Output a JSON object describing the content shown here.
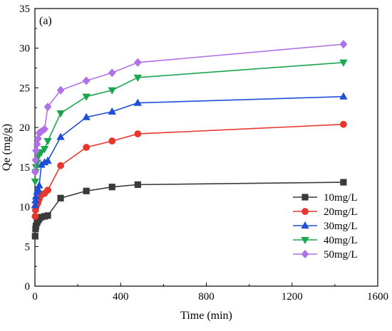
{
  "chart_data": {
    "type": "line",
    "panel_label": "(a)",
    "xlabel": "Time (min)",
    "ylabel": "Qe (mg/g)",
    "xlim": [
      0,
      1600
    ],
    "ylim": [
      0,
      35
    ],
    "xticks": [
      0,
      400,
      800,
      1200,
      1600
    ],
    "yticks": [
      0,
      5,
      10,
      15,
      20,
      25,
      30,
      35
    ],
    "grid": false,
    "legend_position": "bottom-right",
    "series": [
      {
        "name": "10mg/L",
        "color": "#3a3a3a",
        "marker": "square",
        "x": [
          1,
          3,
          5,
          10,
          15,
          20,
          30,
          45,
          60,
          120,
          240,
          360,
          480,
          1440
        ],
        "y": [
          6.3,
          7.2,
          7.6,
          8.0,
          8.3,
          8.5,
          8.7,
          8.8,
          8.9,
          11.1,
          12.0,
          12.5,
          12.8,
          13.1
        ]
      },
      {
        "name": "20mg/L",
        "color": "#e8362e",
        "marker": "circle",
        "x": [
          1,
          3,
          5,
          10,
          15,
          20,
          30,
          45,
          60,
          120,
          240,
          360,
          480,
          1440
        ],
        "y": [
          8.8,
          9.6,
          10.0,
          10.3,
          10.6,
          11.0,
          11.5,
          11.7,
          12.1,
          15.2,
          17.5,
          18.3,
          19.2,
          20.4
        ]
      },
      {
        "name": "30mg/L",
        "color": "#1f4fd4",
        "marker": "triangle-up",
        "x": [
          1,
          3,
          5,
          10,
          15,
          20,
          30,
          45,
          60,
          120,
          240,
          360,
          480,
          1440
        ],
        "y": [
          10.2,
          10.8,
          11.3,
          11.9,
          12.2,
          12.7,
          15.3,
          15.6,
          15.8,
          18.8,
          21.3,
          22.0,
          23.1,
          23.9
        ]
      },
      {
        "name": "40mg/L",
        "color": "#1aa64f",
        "marker": "triangle-down",
        "x": [
          1,
          3,
          5,
          10,
          15,
          20,
          30,
          45,
          60,
          120,
          240,
          360,
          480,
          1440
        ],
        "y": [
          13.2,
          14.4,
          15.0,
          15.6,
          16.3,
          16.8,
          16.9,
          17.3,
          18.3,
          21.8,
          23.9,
          24.7,
          26.3,
          28.2
        ]
      },
      {
        "name": "50mg/L",
        "color": "#b070e6",
        "marker": "diamond",
        "x": [
          1,
          3,
          5,
          10,
          15,
          20,
          30,
          45,
          60,
          120,
          240,
          360,
          480,
          1440
        ],
        "y": [
          14.4,
          15.9,
          17.1,
          17.9,
          18.6,
          19.3,
          19.5,
          19.8,
          22.6,
          24.7,
          25.9,
          26.9,
          28.2,
          30.5
        ]
      }
    ]
  }
}
